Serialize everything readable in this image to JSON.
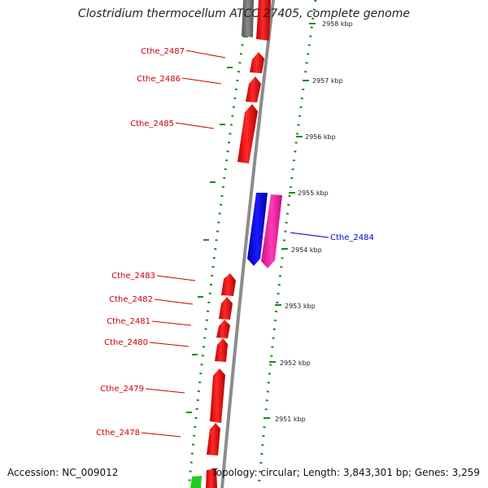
{
  "title": "Clostridium thermocellum ATCC 27405, complete genome",
  "footer": {
    "accession": "Accession: NC_009012",
    "summary": "Topology: circular; Length: 3,843,301 bp; Genes: 3,259"
  },
  "colors": {
    "backbone": "#8c8c8c",
    "forward_gene": "#ff0000",
    "reverse_gene_blue": "#0000ff",
    "reverse_gene_pink": "#ff1aa6",
    "neighbor_gray": "#777777",
    "tick_dots": "#1e8a1e",
    "label_red": "#cc0000",
    "label_blue": "#0000cc",
    "green_feature": "#22cc22"
  },
  "scale_ticks": [
    {
      "label": "2958 kbp"
    },
    {
      "label": "2957 kbp"
    },
    {
      "label": "2956 kbp"
    },
    {
      "label": "2955 kbp"
    },
    {
      "label": "2954 kbp"
    },
    {
      "label": "2953 kbp"
    },
    {
      "label": "2952 kbp"
    },
    {
      "label": "2951 kbp"
    }
  ],
  "genes_left": [
    {
      "name": "Cthe_2487"
    },
    {
      "name": "Cthe_2486"
    },
    {
      "name": "Cthe_2485"
    },
    {
      "name": "Cthe_2483"
    },
    {
      "name": "Cthe_2482"
    },
    {
      "name": "Cthe_2481"
    },
    {
      "name": "Cthe_2480"
    },
    {
      "name": "Cthe_2479"
    },
    {
      "name": "Cthe_2478"
    }
  ],
  "genes_right": [
    {
      "name": "Cthe_2484"
    }
  ]
}
